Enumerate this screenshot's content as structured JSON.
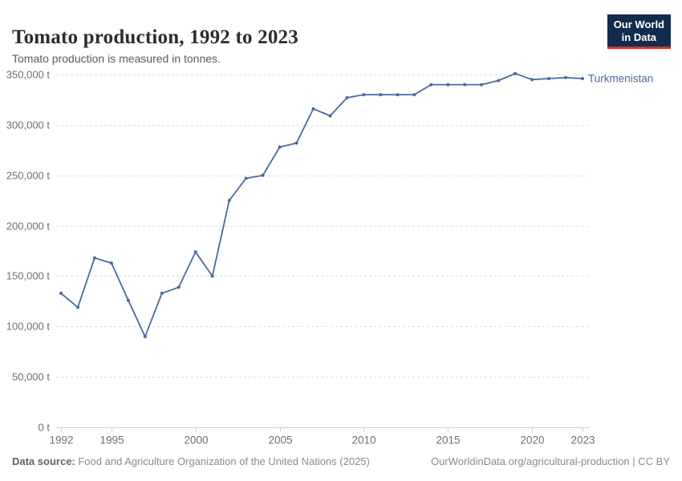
{
  "header": {
    "title": "Tomato production, 1992 to 2023",
    "subtitle": "Tomato production is measured in tonnes.",
    "logo": {
      "line1": "Our World",
      "line2": "in Data"
    }
  },
  "colors": {
    "line": "#4c6a9c",
    "grid": "#dedede",
    "axis": "#cfcfcf",
    "tick_text": "#6e6e6e",
    "logo_bg": "#132c4d",
    "logo_accent": "#d0342c"
  },
  "chart_data": {
    "type": "line",
    "title": "Tomato production, 1992 to 2023",
    "subtitle": "Tomato production is measured in tonnes.",
    "unit": "t",
    "x": [
      1992,
      1993,
      1994,
      1995,
      1996,
      1997,
      1998,
      1999,
      2000,
      2001,
      2002,
      2003,
      2004,
      2005,
      2006,
      2007,
      2008,
      2009,
      2010,
      2011,
      2012,
      2013,
      2014,
      2015,
      2016,
      2017,
      2018,
      2019,
      2020,
      2021,
      2022,
      2023
    ],
    "series": [
      {
        "name": "Turkmenistan",
        "color": "#4c6a9c",
        "values": [
          133000,
          119000,
          168000,
          163000,
          126000,
          90000,
          133000,
          139000,
          174000,
          150000,
          225000,
          247000,
          250000,
          278000,
          282000,
          316000,
          309000,
          327000,
          330000,
          330000,
          330000,
          330000,
          340000,
          340000,
          340000,
          340000,
          344000,
          351000,
          345000,
          346000,
          347000,
          346000
        ]
      }
    ],
    "xlim": [
      1992,
      2023
    ],
    "ylim": [
      0,
      350000
    ],
    "x_ticks": [
      1992,
      1995,
      2000,
      2005,
      2010,
      2015,
      2020,
      2023
    ],
    "y_ticks": [
      {
        "value": 0,
        "label": "0 t"
      },
      {
        "value": 50000,
        "label": "50,000 t"
      },
      {
        "value": 100000,
        "label": "100,000 t"
      },
      {
        "value": 150000,
        "label": "150,000 t"
      },
      {
        "value": 200000,
        "label": "200,000 t"
      },
      {
        "value": 250000,
        "label": "250,000 t"
      },
      {
        "value": 300000,
        "label": "300,000 t"
      },
      {
        "value": 350000,
        "label": "350,000 t"
      }
    ],
    "grid": "horizontal-dashed",
    "legend_position": "end-of-line-label"
  },
  "footer": {
    "source_label": "Data source:",
    "source_text": " Food and Agriculture Organization of the United Nations (2025)",
    "credit": "OurWorldinData.org/agricultural-production | CC BY"
  }
}
